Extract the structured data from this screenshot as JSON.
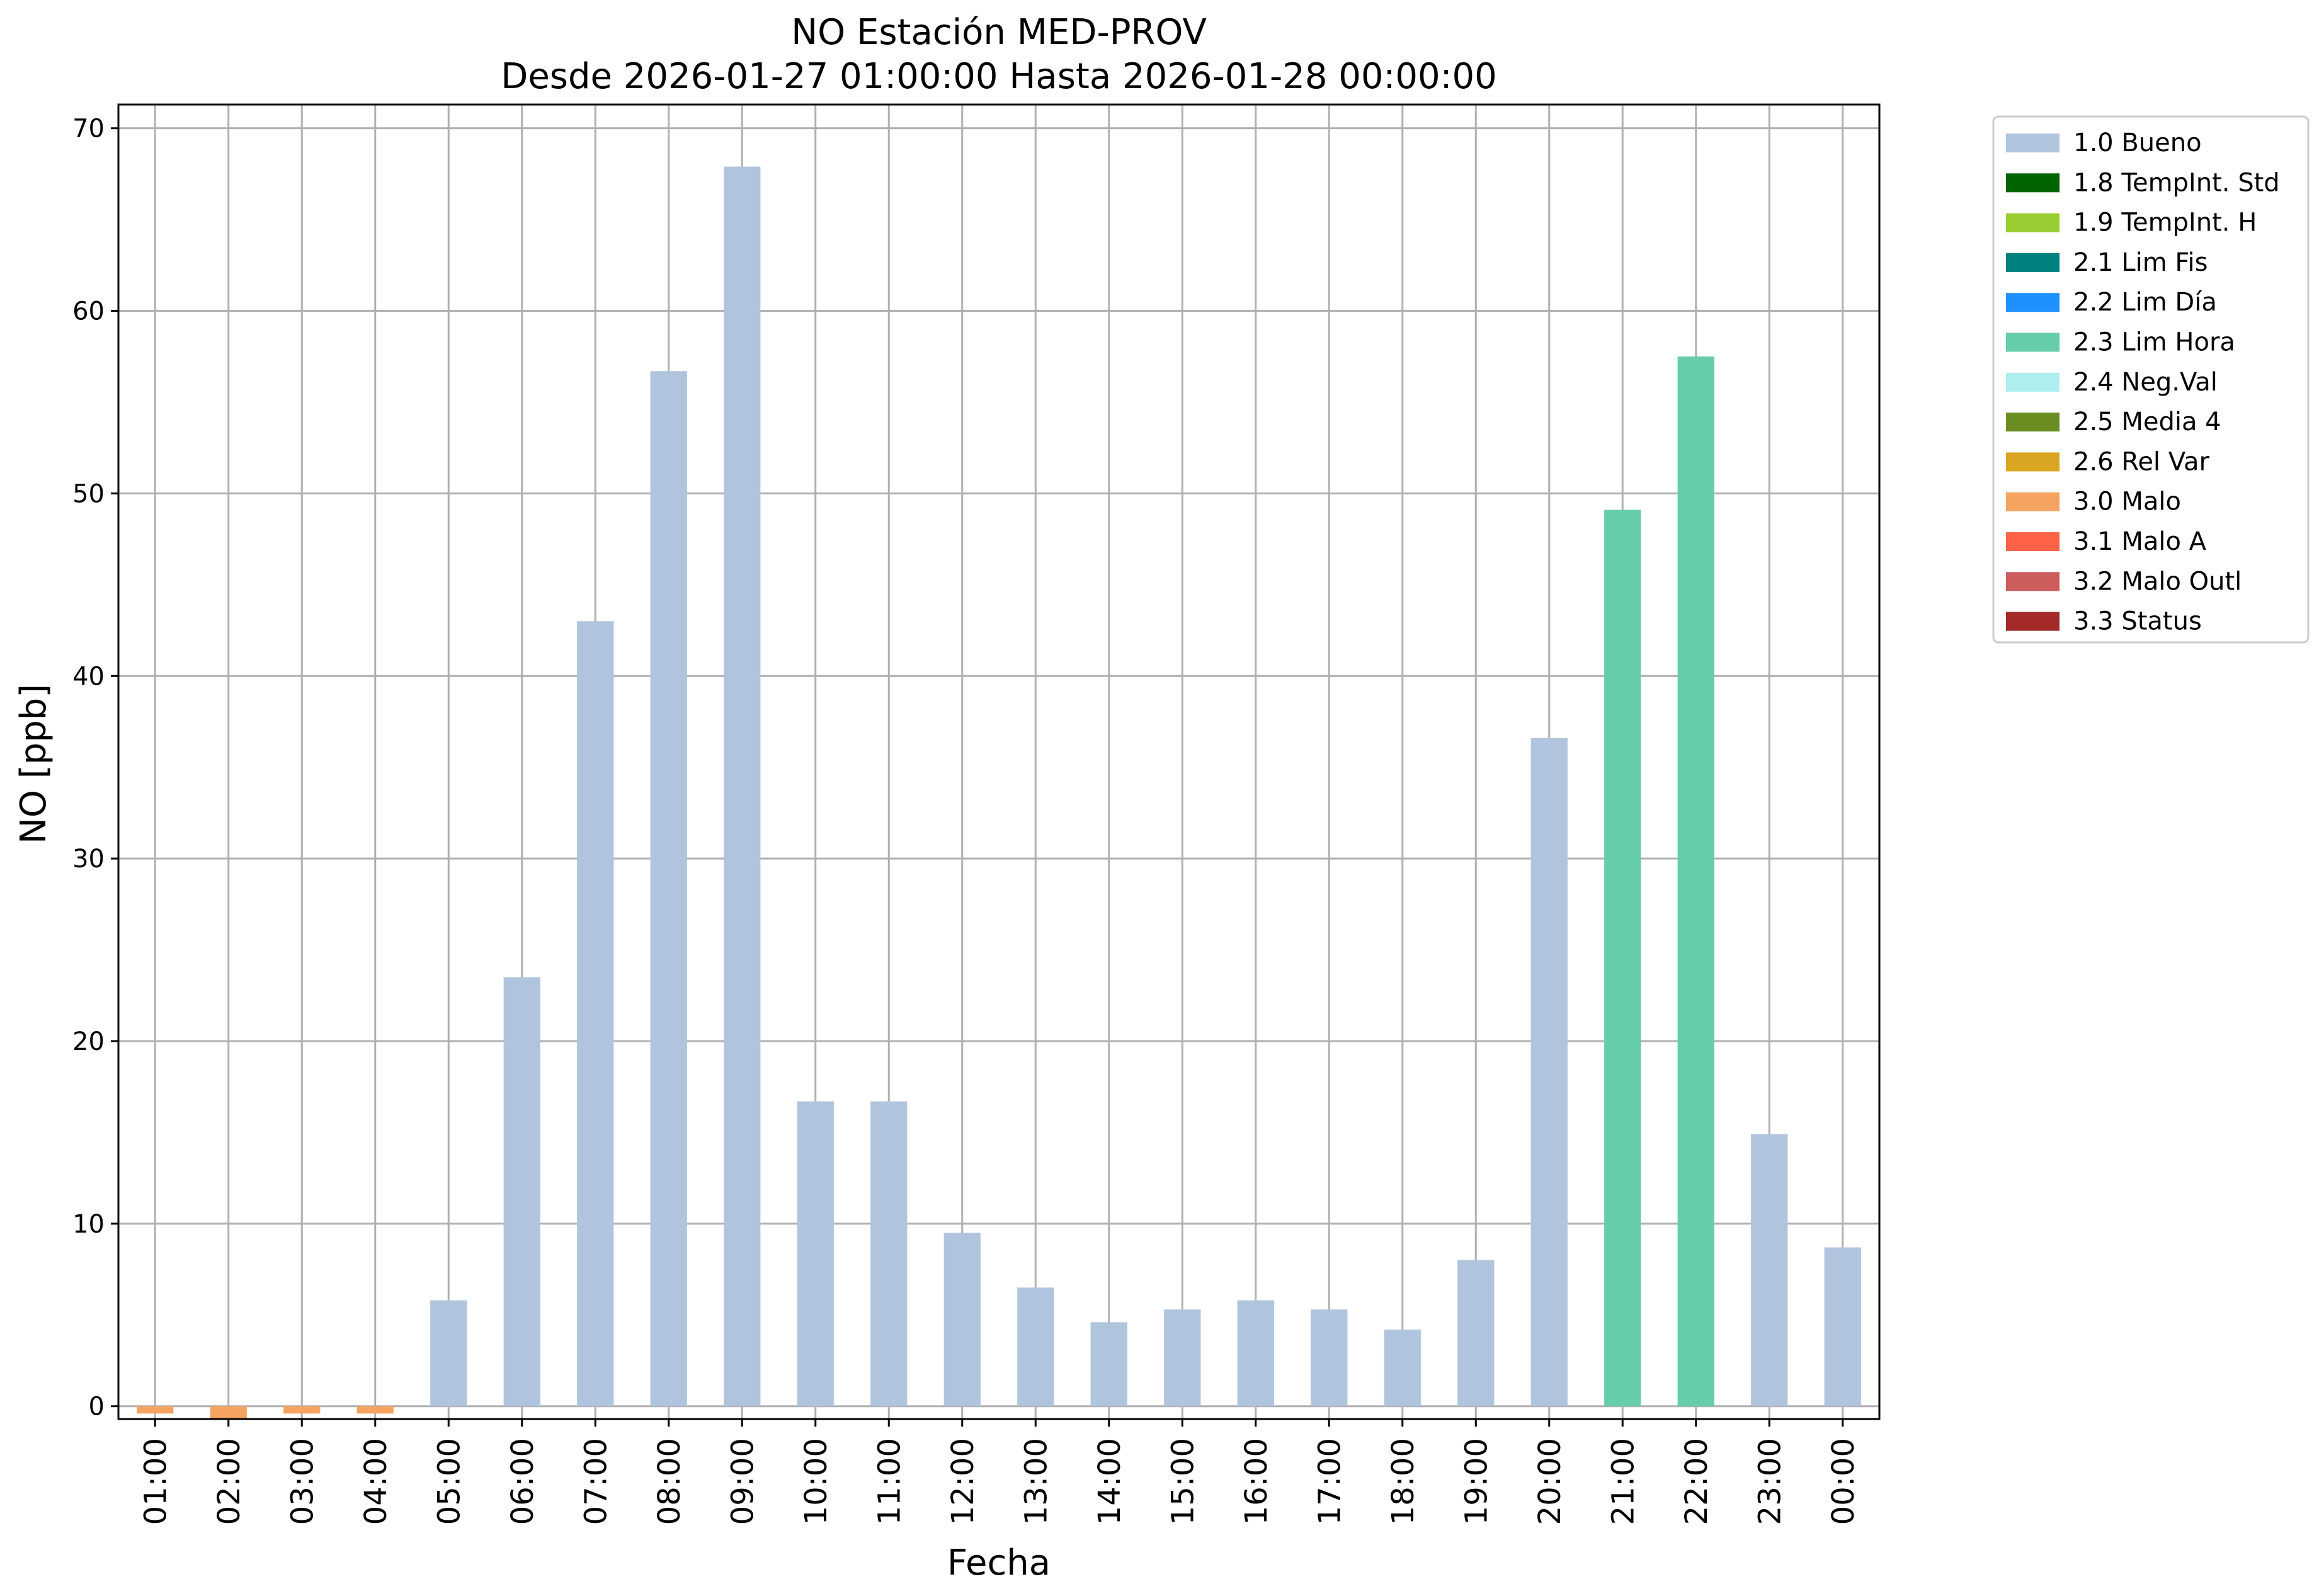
{
  "chart_data": {
    "type": "bar",
    "title": "NO Estación MED-PROV",
    "subtitle": "Desde 2026-01-27 01:00:00 Hasta 2026-01-28 00:00:00",
    "xlabel": "Fecha",
    "ylabel": "NO [ppb]",
    "ylim": [
      -0.7,
      71.3
    ],
    "yticks": [
      0,
      10,
      20,
      30,
      40,
      50,
      60,
      70
    ],
    "grid": true,
    "legend_position": "outside top-right",
    "categories": [
      "01:00",
      "02:00",
      "03:00",
      "04:00",
      "05:00",
      "06:00",
      "07:00",
      "08:00",
      "09:00",
      "10:00",
      "11:00",
      "12:00",
      "13:00",
      "14:00",
      "15:00",
      "16:00",
      "17:00",
      "18:00",
      "19:00",
      "20:00",
      "21:00",
      "22:00",
      "23:00",
      "00:00"
    ],
    "values": [
      -0.4,
      -0.7,
      -0.4,
      -0.4,
      5.8,
      23.5,
      43.0,
      56.7,
      67.9,
      16.7,
      16.7,
      9.5,
      6.5,
      4.6,
      5.3,
      5.8,
      5.3,
      4.2,
      8.0,
      36.6,
      49.1,
      57.5,
      14.9,
      8.7
    ],
    "flags": [
      "3.0 Malo",
      "3.0 Malo",
      "3.0 Malo",
      "3.0 Malo",
      "1.0 Bueno",
      "1.0 Bueno",
      "1.0 Bueno",
      "1.0 Bueno",
      "1.0 Bueno",
      "1.0 Bueno",
      "1.0 Bueno",
      "1.0 Bueno",
      "1.0 Bueno",
      "1.0 Bueno",
      "1.0 Bueno",
      "1.0 Bueno",
      "1.0 Bueno",
      "1.0 Bueno",
      "1.0 Bueno",
      "1.0 Bueno",
      "2.3 Lim Hora",
      "2.3 Lim Hora",
      "1.0 Bueno",
      "1.0 Bueno"
    ],
    "legend": [
      {
        "label": "1.0 Bueno",
        "color": "#b0c4de"
      },
      {
        "label": "1.8 TempInt. Std",
        "color": "#006400"
      },
      {
        "label": "1.9 TempInt. H",
        "color": "#9acd32"
      },
      {
        "label": "2.1 Lim Fis",
        "color": "#008080"
      },
      {
        "label": "2.2 Lim Día",
        "color": "#1e90ff"
      },
      {
        "label": "2.3 Lim Hora",
        "color": "#66cdaa"
      },
      {
        "label": "2.4 Neg.Val",
        "color": "#afeeee"
      },
      {
        "label": "2.5 Media 4",
        "color": "#6b8e23"
      },
      {
        "label": "2.6 Rel Var",
        "color": "#daa520"
      },
      {
        "label": "3.0 Malo",
        "color": "#f4a460"
      },
      {
        "label": "3.1 Malo A",
        "color": "#ff6347"
      },
      {
        "label": "3.2 Malo Outl",
        "color": "#cd5c5c"
      },
      {
        "label": "3.3 Status",
        "color": "#a52a2a"
      }
    ]
  }
}
